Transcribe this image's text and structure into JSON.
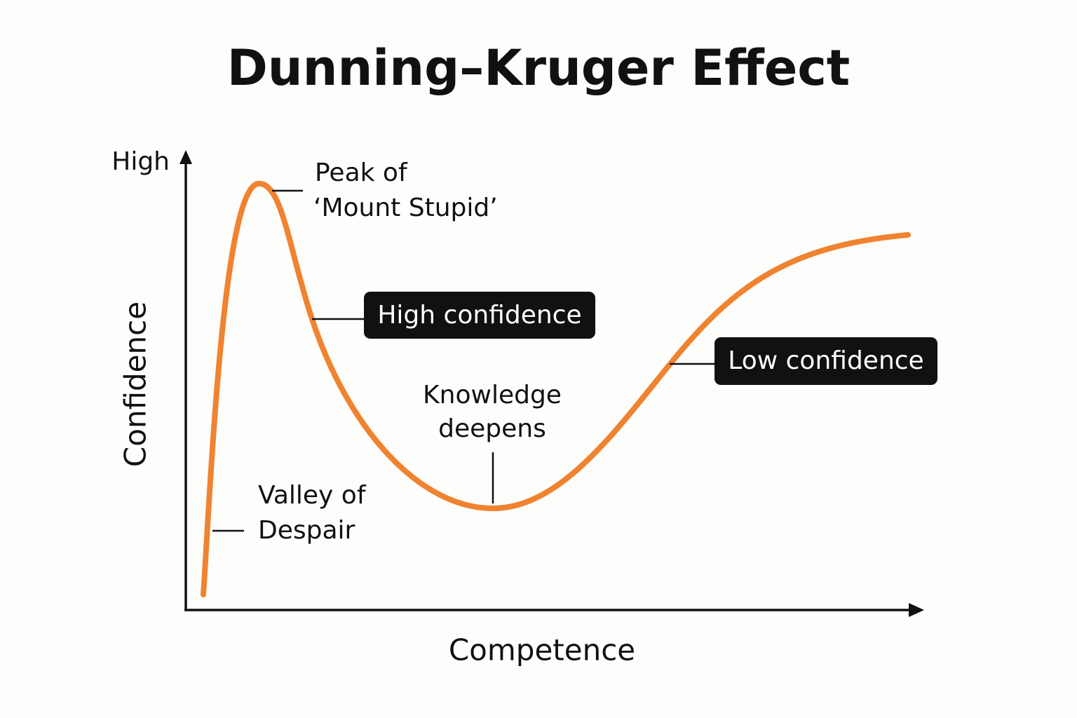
{
  "title": "Dunning–Kruger Effect",
  "y_axis": {
    "label": "Confidence",
    "end_label": "High"
  },
  "x_axis": {
    "label": "Competence"
  },
  "annotations": {
    "peak": {
      "lines": [
        "Peak of",
        "‘Mount Stupid’"
      ]
    },
    "high_confidence": {
      "label": "High confidence"
    },
    "low_confidence": {
      "label": "Low confidence"
    },
    "knowledge": {
      "lines": [
        "Knowledge",
        "deepens"
      ]
    },
    "valley": {
      "lines": [
        "Valley of",
        "Despair"
      ]
    }
  }
}
